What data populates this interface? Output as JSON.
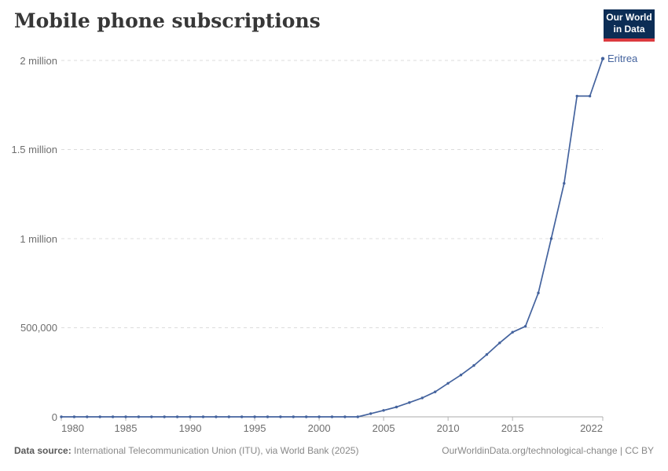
{
  "header": {
    "title": "Mobile phone subscriptions"
  },
  "logo": {
    "line1": "Our World",
    "line2": "in Data",
    "bg_color": "#0c2d55",
    "bar_color": "#dc3a3f"
  },
  "chart_data": {
    "type": "line",
    "title": "Mobile phone subscriptions",
    "entity": "Eritrea",
    "line_color": "#44639e",
    "grid": "dashed horizontal",
    "legend_position": "end-of-line label",
    "xlim": [
      1980,
      2022
    ],
    "ylim": [
      0,
      2000000
    ],
    "x": [
      1980,
      1981,
      1982,
      1983,
      1984,
      1985,
      1986,
      1987,
      1988,
      1989,
      1990,
      1991,
      1992,
      1993,
      1994,
      1995,
      1996,
      1997,
      1998,
      1999,
      2000,
      2001,
      2002,
      2003,
      2004,
      2005,
      2006,
      2007,
      2008,
      2009,
      2010,
      2011,
      2012,
      2013,
      2014,
      2015,
      2016,
      2017,
      2018,
      2019,
      2020,
      2021,
      2022
    ],
    "series": [
      {
        "name": "Eritrea",
        "values": [
          0,
          0,
          0,
          0,
          0,
          0,
          0,
          0,
          0,
          0,
          0,
          0,
          0,
          0,
          0,
          0,
          0,
          0,
          0,
          0,
          0,
          0,
          0,
          0,
          18000,
          36000,
          55000,
          80000,
          106000,
          140000,
          188000,
          235000,
          288000,
          350000,
          415000,
          475000,
          508000,
          695000,
          1000000,
          1310000,
          1800000,
          1800000,
          2010000
        ]
      }
    ],
    "yticks": [
      {
        "value": 0,
        "label": "0"
      },
      {
        "value": 500000,
        "label": "500,000"
      },
      {
        "value": 1000000,
        "label": "1 million"
      },
      {
        "value": 1500000,
        "label": "1.5 million"
      },
      {
        "value": 2000000,
        "label": "2 million"
      }
    ],
    "xticks": [
      {
        "value": 1980,
        "label": "1980"
      },
      {
        "value": 1985,
        "label": "1985"
      },
      {
        "value": 1990,
        "label": "1990"
      },
      {
        "value": 1995,
        "label": "1995"
      },
      {
        "value": 2000,
        "label": "2000"
      },
      {
        "value": 2005,
        "label": "2005"
      },
      {
        "value": 2010,
        "label": "2010"
      },
      {
        "value": 2015,
        "label": "2015"
      },
      {
        "value": 2022,
        "label": "2022"
      }
    ],
    "colors": {
      "gridline": "#dcdcdc",
      "axis_line": "#a8a8a8",
      "tick_mark": "#b3b3b3",
      "tick_label": "#6e6e6e"
    }
  },
  "footer": {
    "source_label": "Data source:",
    "source_text": "International Telecommunication Union (ITU), via World Bank (2025)",
    "link_text": "OurWorldinData.org/technological-change | CC BY"
  }
}
